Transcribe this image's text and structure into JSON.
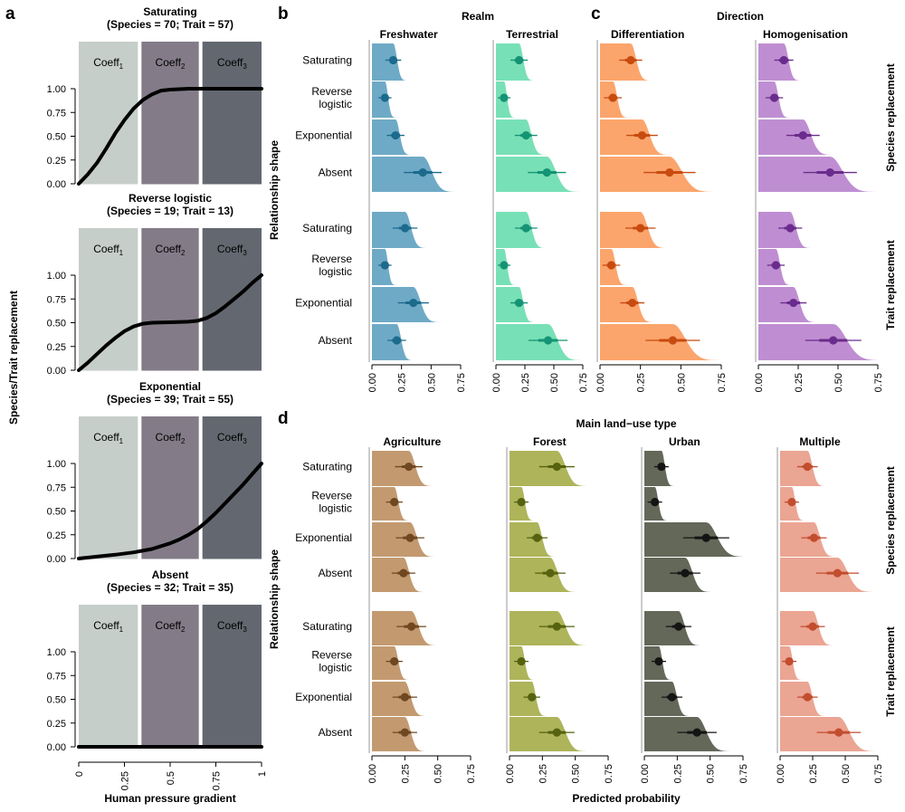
{
  "figure": {
    "panel_labels": [
      "a",
      "b",
      "c",
      "d"
    ],
    "y_axis_title_a": "Species/Trait replacement",
    "x_axis_title_a": "Human pressure gradient",
    "y_axis_title_bcd": "Relationship shape",
    "x_axis_title_d": "Predicted probability",
    "b_title": "Realm",
    "c_title": "Direction",
    "d_title": "Main land−use type",
    "row_group_labels": [
      "Species replacement",
      "Trait replacement"
    ],
    "shape_labels": [
      "Saturating",
      "Reverse\nlogistic",
      "Exponential",
      "Absent"
    ],
    "coeff_labels": [
      "Coeff",
      "Coeff",
      "Coeff"
    ],
    "coeff_subscripts": [
      "1",
      "2",
      "3"
    ]
  },
  "colors": {
    "coeff1": "#c6ceca",
    "coeff2": "#837c88",
    "coeff3": "#636870",
    "freshwater": [
      "#6eaac6",
      "#1c6a8c"
    ],
    "terrestrial": [
      "#78e0b6",
      "#149474"
    ],
    "differentiation": [
      "#fba56c",
      "#c84b10"
    ],
    "homogenisation": [
      "#bf8ed2",
      "#6a2c8c"
    ],
    "agriculture": [
      "#c39a70",
      "#6f4721"
    ],
    "forest": [
      "#adb45a",
      "#56620f"
    ],
    "urban": [
      "#636859",
      "#141414"
    ],
    "multiple": [
      "#eba593",
      "#c24d2f"
    ]
  },
  "chart_data": [
    {
      "type": "line",
      "panel": "a",
      "panels": [
        {
          "title": "Saturating",
          "subtitle": "(Species = 70; Trait = 57)",
          "x": [
            0,
            0.05,
            0.1,
            0.15,
            0.2,
            0.25,
            0.3,
            0.35,
            0.4,
            0.45,
            0.5,
            0.6,
            0.7,
            0.8,
            0.9,
            1.0
          ],
          "y": [
            0.0,
            0.1,
            0.22,
            0.37,
            0.53,
            0.67,
            0.79,
            0.88,
            0.94,
            0.98,
            0.99,
            1.0,
            1.0,
            1.0,
            1.0,
            1.0
          ]
        },
        {
          "title": "Reverse logistic",
          "subtitle": "(Species = 19; Trait = 13)",
          "x": [
            0,
            0.05,
            0.1,
            0.15,
            0.2,
            0.25,
            0.3,
            0.35,
            0.4,
            0.5,
            0.6,
            0.65,
            0.7,
            0.75,
            0.8,
            0.85,
            0.9,
            0.95,
            1.0
          ],
          "y": [
            0.0,
            0.08,
            0.17,
            0.26,
            0.34,
            0.41,
            0.46,
            0.49,
            0.5,
            0.505,
            0.51,
            0.52,
            0.55,
            0.6,
            0.67,
            0.75,
            0.83,
            0.92,
            1.0
          ]
        },
        {
          "title": "Exponential",
          "subtitle": "(Species = 39; Trait = 55)",
          "x": [
            0,
            0.1,
            0.2,
            0.3,
            0.4,
            0.5,
            0.55,
            0.6,
            0.65,
            0.7,
            0.75,
            0.8,
            0.85,
            0.9,
            0.95,
            1.0
          ],
          "y": [
            0.0,
            0.02,
            0.04,
            0.065,
            0.1,
            0.16,
            0.2,
            0.25,
            0.31,
            0.39,
            0.48,
            0.58,
            0.68,
            0.78,
            0.89,
            1.0
          ]
        },
        {
          "title": "Absent",
          "subtitle": "(Species = 32; Trait = 35)",
          "x": [
            0,
            1.0
          ],
          "y": [
            0.0,
            0.0
          ]
        }
      ],
      "xlim": [
        0,
        1
      ],
      "ylim": [
        0,
        1
      ],
      "x_ticks": [
        "0",
        "0.25",
        "0.5",
        "0.75",
        "1"
      ],
      "y_ticks": [
        "0.00",
        "0.25",
        "0.50",
        "0.75",
        "1.00"
      ]
    },
    {
      "type": "halfeye",
      "panel": "b",
      "xlim": [
        0,
        0.75
      ],
      "x_ticks": [
        "0.00",
        "0.25",
        "0.50",
        "0.75"
      ],
      "columns": [
        {
          "name": "Freshwater",
          "palette": "freshwater",
          "species": [
            {
              "shape": "Saturating",
              "mean": 0.18
            },
            {
              "shape": "Reverse logistic",
              "mean": 0.11
            },
            {
              "shape": "Exponential",
              "mean": 0.2
            },
            {
              "shape": "Absent",
              "mean": 0.43
            }
          ],
          "trait": [
            {
              "shape": "Saturating",
              "mean": 0.28
            },
            {
              "shape": "Reverse logistic",
              "mean": 0.11
            },
            {
              "shape": "Exponential",
              "mean": 0.35
            },
            {
              "shape": "Absent",
              "mean": 0.21
            }
          ]
        },
        {
          "name": "Terrestrial",
          "palette": "terrestrial",
          "species": [
            {
              "shape": "Saturating",
              "mean": 0.2
            },
            {
              "shape": "Reverse logistic",
              "mean": 0.07
            },
            {
              "shape": "Exponential",
              "mean": 0.26
            },
            {
              "shape": "Absent",
              "mean": 0.44
            }
          ],
          "trait": [
            {
              "shape": "Saturating",
              "mean": 0.26
            },
            {
              "shape": "Reverse logistic",
              "mean": 0.07
            },
            {
              "shape": "Exponential",
              "mean": 0.2
            },
            {
              "shape": "Absent",
              "mean": 0.45
            }
          ]
        }
      ]
    },
    {
      "type": "halfeye",
      "panel": "c",
      "xlim": [
        0,
        0.75
      ],
      "x_ticks": [
        "0.00",
        "0.25",
        "0.50",
        "0.75"
      ],
      "columns": [
        {
          "name": "Differentiation",
          "palette": "differentiation",
          "species": [
            {
              "shape": "Saturating",
              "mean": 0.19
            },
            {
              "shape": "Reverse logistic",
              "mean": 0.08
            },
            {
              "shape": "Exponential",
              "mean": 0.26
            },
            {
              "shape": "Absent",
              "mean": 0.43
            }
          ],
          "trait": [
            {
              "shape": "Saturating",
              "mean": 0.25
            },
            {
              "shape": "Reverse logistic",
              "mean": 0.07
            },
            {
              "shape": "Exponential",
              "mean": 0.2
            },
            {
              "shape": "Absent",
              "mean": 0.45
            }
          ]
        },
        {
          "name": "Homogenisation",
          "palette": "homogenisation",
          "species": [
            {
              "shape": "Saturating",
              "mean": 0.16
            },
            {
              "shape": "Reverse logistic",
              "mean": 0.1
            },
            {
              "shape": "Exponential",
              "mean": 0.28
            },
            {
              "shape": "Absent",
              "mean": 0.45
            }
          ],
          "trait": [
            {
              "shape": "Saturating",
              "mean": 0.2
            },
            {
              "shape": "Reverse logistic",
              "mean": 0.11
            },
            {
              "shape": "Exponential",
              "mean": 0.22
            },
            {
              "shape": "Absent",
              "mean": 0.47
            }
          ]
        }
      ]
    },
    {
      "type": "halfeye",
      "panel": "d",
      "xlim": [
        0,
        0.75
      ],
      "x_ticks": [
        "0.00",
        "0.25",
        "0.50",
        "0.75"
      ],
      "columns": [
        {
          "name": "Agriculture",
          "palette": "agriculture",
          "species": [
            {
              "shape": "Saturating",
              "mean": 0.28
            },
            {
              "shape": "Reverse logistic",
              "mean": 0.17
            },
            {
              "shape": "Exponential",
              "mean": 0.29
            },
            {
              "shape": "Absent",
              "mean": 0.24
            }
          ],
          "trait": [
            {
              "shape": "Saturating",
              "mean": 0.3
            },
            {
              "shape": "Reverse logistic",
              "mean": 0.17
            },
            {
              "shape": "Exponential",
              "mean": 0.25
            },
            {
              "shape": "Absent",
              "mean": 0.25
            }
          ]
        },
        {
          "name": "Forest",
          "palette": "forest",
          "species": [
            {
              "shape": "Saturating",
              "mean": 0.36
            },
            {
              "shape": "Reverse logistic",
              "mean": 0.09
            },
            {
              "shape": "Exponential",
              "mean": 0.21
            },
            {
              "shape": "Absent",
              "mean": 0.31
            }
          ],
          "trait": [
            {
              "shape": "Saturating",
              "mean": 0.36
            },
            {
              "shape": "Reverse logistic",
              "mean": 0.09
            },
            {
              "shape": "Exponential",
              "mean": 0.17
            },
            {
              "shape": "Absent",
              "mean": 0.36
            }
          ]
        },
        {
          "name": "Urban",
          "palette": "urban",
          "species": [
            {
              "shape": "Saturating",
              "mean": 0.13
            },
            {
              "shape": "Reverse logistic",
              "mean": 0.08
            },
            {
              "shape": "Exponential",
              "mean": 0.47
            },
            {
              "shape": "Absent",
              "mean": 0.31
            }
          ],
          "trait": [
            {
              "shape": "Saturating",
              "mean": 0.26
            },
            {
              "shape": "Reverse logistic",
              "mean": 0.11
            },
            {
              "shape": "Exponential",
              "mean": 0.21
            },
            {
              "shape": "Absent",
              "mean": 0.4
            }
          ]
        },
        {
          "name": "Multiple",
          "palette": "multiple",
          "species": [
            {
              "shape": "Saturating",
              "mean": 0.21
            },
            {
              "shape": "Reverse logistic",
              "mean": 0.09
            },
            {
              "shape": "Exponential",
              "mean": 0.26
            },
            {
              "shape": "Absent",
              "mean": 0.44
            }
          ],
          "trait": [
            {
              "shape": "Saturating",
              "mean": 0.25
            },
            {
              "shape": "Reverse logistic",
              "mean": 0.07
            },
            {
              "shape": "Exponential",
              "mean": 0.21
            },
            {
              "shape": "Absent",
              "mean": 0.45
            }
          ]
        }
      ]
    }
  ]
}
